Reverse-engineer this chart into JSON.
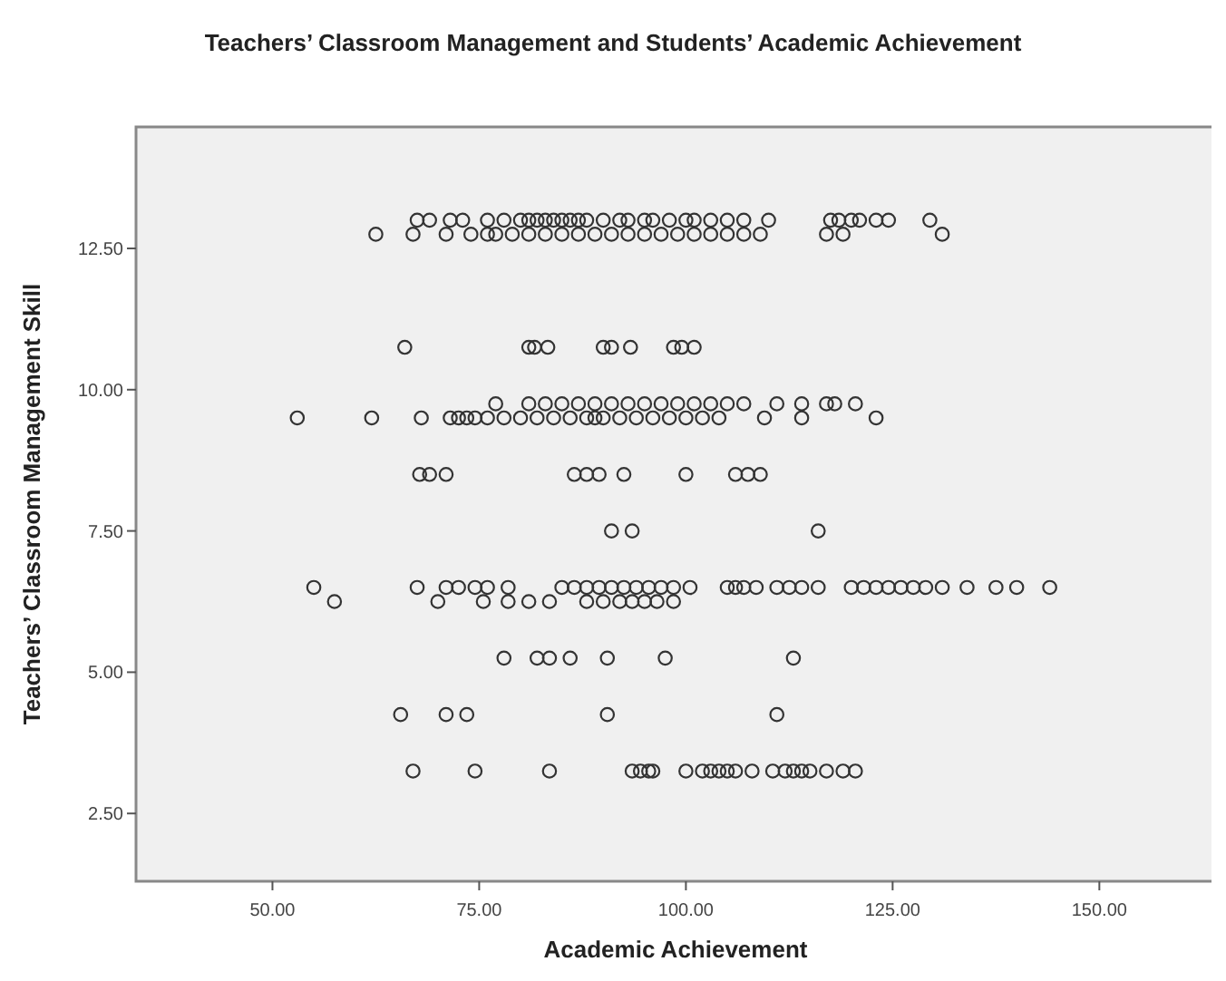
{
  "chart_data": {
    "type": "scatter",
    "title": "Teachers’ Classroom Management and Students’ Academic Achievement",
    "xlabel": "Academic Achievement",
    "ylabel": "Teachers’ Classroom Management Skill",
    "xlim": [
      33.5,
      164
    ],
    "ylim": [
      1.3,
      14.65
    ],
    "xticks": [
      {
        "value": 50,
        "label": "50.00"
      },
      {
        "value": 75,
        "label": "75.00"
      },
      {
        "value": 100,
        "label": "100.00"
      },
      {
        "value": 125,
        "label": "125.00"
      },
      {
        "value": 150,
        "label": "150.00"
      }
    ],
    "yticks": [
      {
        "value": 2.5,
        "label": "2.50"
      },
      {
        "value": 5,
        "label": "5.00"
      },
      {
        "value": 7.5,
        "label": "7.50"
      },
      {
        "value": 10,
        "label": "10.00"
      },
      {
        "value": 12.5,
        "label": "12.50"
      }
    ],
    "grid": false,
    "marker": "circle",
    "series": [
      {
        "color": "#333333",
        "x": [
          67.5,
          69,
          71.5,
          73,
          76,
          78,
          80,
          81,
          82,
          83,
          84,
          85,
          86,
          87,
          88,
          90,
          92,
          93,
          95,
          96,
          98,
          100,
          101,
          103,
          105,
          107,
          110,
          117.5,
          118.5,
          120,
          121,
          123,
          124.5,
          129.5,
          62.5,
          67,
          71,
          74,
          76,
          77,
          79,
          81,
          83,
          85,
          87,
          89,
          91,
          93,
          95,
          97,
          99,
          101,
          103,
          105,
          107,
          109,
          117,
          119,
          131,
          66,
          81,
          81.7,
          83.3,
          90,
          91,
          93.3,
          98.5,
          99.5,
          101,
          77,
          81,
          83,
          85,
          87,
          89,
          91,
          93,
          95,
          97,
          99,
          101,
          103,
          105,
          107,
          111,
          114,
          117,
          118,
          120.5,
          53,
          62,
          68,
          71.5,
          72.5,
          73.5,
          74.5,
          76,
          78,
          80,
          82,
          84,
          86,
          88,
          89,
          90,
          92,
          94,
          96,
          98,
          100,
          102,
          104,
          109.5,
          114,
          123,
          67.8,
          69,
          71,
          86.5,
          88,
          89.5,
          92.5,
          100,
          106,
          107.5,
          109,
          91,
          93.5,
          116,
          55,
          67.5,
          71,
          72.5,
          74.5,
          76,
          78.5,
          85,
          86.5,
          88,
          89.5,
          91,
          92.5,
          94,
          95.5,
          97,
          98.5,
          100.5,
          105,
          106,
          107,
          108.5,
          111,
          112.5,
          114,
          116,
          120,
          121.5,
          123,
          124.5,
          126,
          127.5,
          129,
          131,
          134,
          137.5,
          140,
          144,
          57.5,
          70,
          75.5,
          78.5,
          81,
          83.5,
          88,
          90,
          92,
          93.5,
          95,
          96.5,
          98.5,
          78,
          82,
          83.5,
          86,
          90.5,
          97.5,
          113,
          65.5,
          71,
          73.5,
          90.5,
          111,
          67,
          74.5,
          83.5,
          93.5,
          94.5,
          95.5,
          96,
          100,
          102,
          103,
          104,
          105,
          106,
          108,
          110.5,
          112,
          113,
          114,
          115,
          117,
          119,
          120.5
        ],
        "values": [
          13,
          13,
          13,
          13,
          13,
          13,
          13,
          13,
          13,
          13,
          13,
          13,
          13,
          13,
          13,
          13,
          13,
          13,
          13,
          13,
          13,
          13,
          13,
          13,
          13,
          13,
          13,
          13,
          13,
          13,
          13,
          13,
          13,
          13,
          12.75,
          12.75,
          12.75,
          12.75,
          12.75,
          12.75,
          12.75,
          12.75,
          12.75,
          12.75,
          12.75,
          12.75,
          12.75,
          12.75,
          12.75,
          12.75,
          12.75,
          12.75,
          12.75,
          12.75,
          12.75,
          12.75,
          12.75,
          12.75,
          12.75,
          10.75,
          10.75,
          10.75,
          10.75,
          10.75,
          10.75,
          10.75,
          10.75,
          10.75,
          10.75,
          9.75,
          9.75,
          9.75,
          9.75,
          9.75,
          9.75,
          9.75,
          9.75,
          9.75,
          9.75,
          9.75,
          9.75,
          9.75,
          9.75,
          9.75,
          9.75,
          9.75,
          9.75,
          9.75,
          9.75,
          9.5,
          9.5,
          9.5,
          9.5,
          9.5,
          9.5,
          9.5,
          9.5,
          9.5,
          9.5,
          9.5,
          9.5,
          9.5,
          9.5,
          9.5,
          9.5,
          9.5,
          9.5,
          9.5,
          9.5,
          9.5,
          9.5,
          9.5,
          9.5,
          9.5,
          9.5,
          8.5,
          8.5,
          8.5,
          8.5,
          8.5,
          8.5,
          8.5,
          8.5,
          8.5,
          8.5,
          8.5,
          7.5,
          7.5,
          7.5,
          6.5,
          6.5,
          6.5,
          6.5,
          6.5,
          6.5,
          6.5,
          6.5,
          6.5,
          6.5,
          6.5,
          6.5,
          6.5,
          6.5,
          6.5,
          6.5,
          6.5,
          6.5,
          6.5,
          6.5,
          6.5,
          6.5,
          6.5,
          6.5,
          6.5,
          6.5,
          6.5,
          6.5,
          6.5,
          6.5,
          6.5,
          6.5,
          6.5,
          6.5,
          6.5,
          6.5,
          6.5,
          6.5,
          6.25,
          6.25,
          6.25,
          6.25,
          6.25,
          6.25,
          6.25,
          6.25,
          6.25,
          6.25,
          6.25,
          6.25,
          6.25,
          5.25,
          5.25,
          5.25,
          5.25,
          5.25,
          5.25,
          5.25,
          4.25,
          4.25,
          4.25,
          4.25,
          4.25,
          3.25,
          3.25,
          3.25,
          3.25,
          3.25,
          3.25,
          3.25,
          3.25,
          3.25,
          3.25,
          3.25,
          3.25,
          3.25,
          3.25,
          3.25,
          3.25,
          3.25,
          3.25,
          3.25,
          3.25,
          3.25,
          3.25
        ]
      }
    ]
  }
}
